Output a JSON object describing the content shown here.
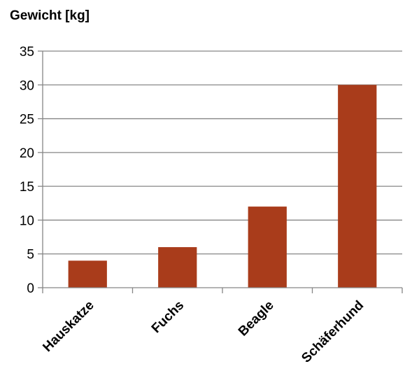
{
  "chart_data": {
    "type": "bar",
    "title": "Gewicht [kg]",
    "xlabel": "",
    "ylabel": "",
    "categories": [
      "Hauskatze",
      "Fuchs",
      "Beagle",
      "Schäferhund"
    ],
    "values": [
      4,
      6,
      12,
      30
    ],
    "ylim": [
      0,
      35
    ],
    "yticks": [
      0,
      5,
      10,
      15,
      20,
      25,
      30,
      35
    ],
    "grid": true,
    "legend": "none",
    "bar_color": "#A93C1B",
    "grid_color": "#868686"
  }
}
